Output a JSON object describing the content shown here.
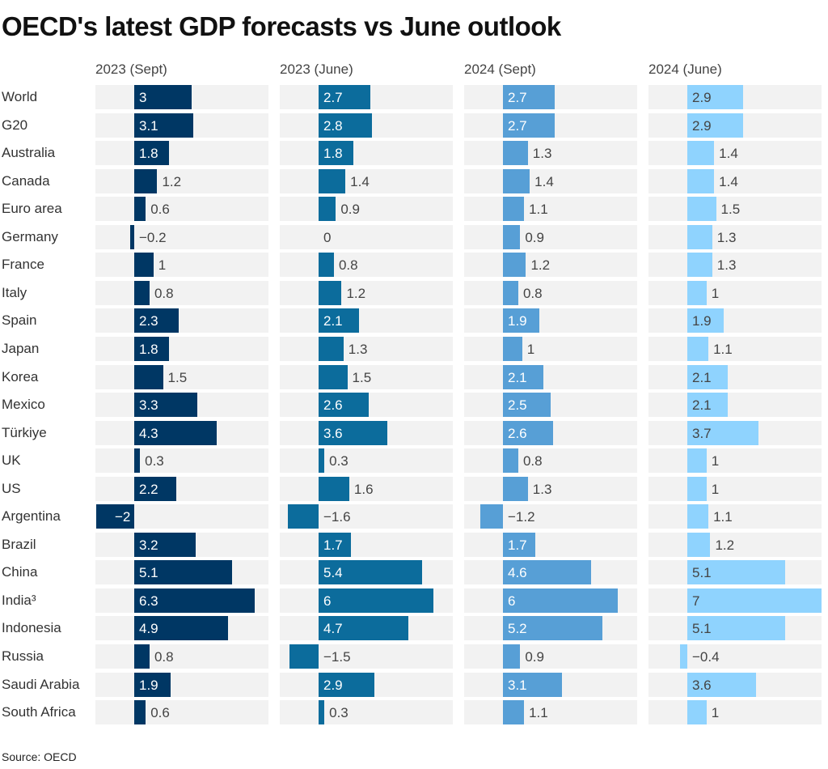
{
  "title": "OECD's latest GDP forecasts vs June outlook",
  "source": "Source: OECD",
  "chart_data": {
    "type": "bar",
    "title": "OECD's latest GDP forecasts vs June outlook",
    "categories": [
      "World",
      "G20",
      "Australia",
      "Canada",
      "Euro area",
      "Germany",
      "France",
      "Italy",
      "Spain",
      "Japan",
      "Korea",
      "Mexico",
      "Türkiye",
      "UK",
      "US",
      "Argentina",
      "Brazil",
      "China",
      "India³",
      "Indonesia",
      "Russia",
      "Saudi Arabia",
      "South Africa"
    ],
    "series": [
      {
        "name": "2023 (Sept)",
        "color": "#003764",
        "label_color": "#ffffff",
        "values": [
          3,
          3.1,
          1.8,
          1.2,
          0.6,
          -0.2,
          1,
          0.8,
          2.3,
          1.8,
          1.5,
          3.3,
          4.3,
          0.3,
          2.2,
          -2,
          3.2,
          5.1,
          6.3,
          4.9,
          0.8,
          1.9,
          0.6
        ]
      },
      {
        "name": "2023 (June)",
        "color": "#0c6c9c",
        "label_color": "#ffffff",
        "values": [
          2.7,
          2.8,
          1.8,
          1.4,
          0.9,
          0,
          0.8,
          1.2,
          2.1,
          1.3,
          1.5,
          2.6,
          3.6,
          0.3,
          1.6,
          -1.6,
          1.7,
          5.4,
          6,
          4.7,
          -1.5,
          2.9,
          0.3
        ]
      },
      {
        "name": "2024 (Sept)",
        "color": "#579fd6",
        "label_color": "#ffffff",
        "values": [
          2.7,
          2.7,
          1.3,
          1.4,
          1.1,
          0.9,
          1.2,
          0.8,
          1.9,
          1,
          2.1,
          2.5,
          2.6,
          0.8,
          1.3,
          -1.2,
          1.7,
          4.6,
          6,
          5.2,
          0.9,
          3.1,
          1.1
        ]
      },
      {
        "name": "2024 (June)",
        "color": "#8fd3fe",
        "label_color": "#444444",
        "values": [
          2.9,
          2.9,
          1.4,
          1.4,
          1.5,
          1.3,
          1.3,
          1,
          1.9,
          1.1,
          2.1,
          2.1,
          3.7,
          1,
          1,
          1.1,
          1.2,
          5.1,
          7,
          5.1,
          -0.4,
          3.6,
          1
        ]
      }
    ],
    "xlim": [
      -2,
      7
    ],
    "grid": false,
    "legend": "none"
  }
}
